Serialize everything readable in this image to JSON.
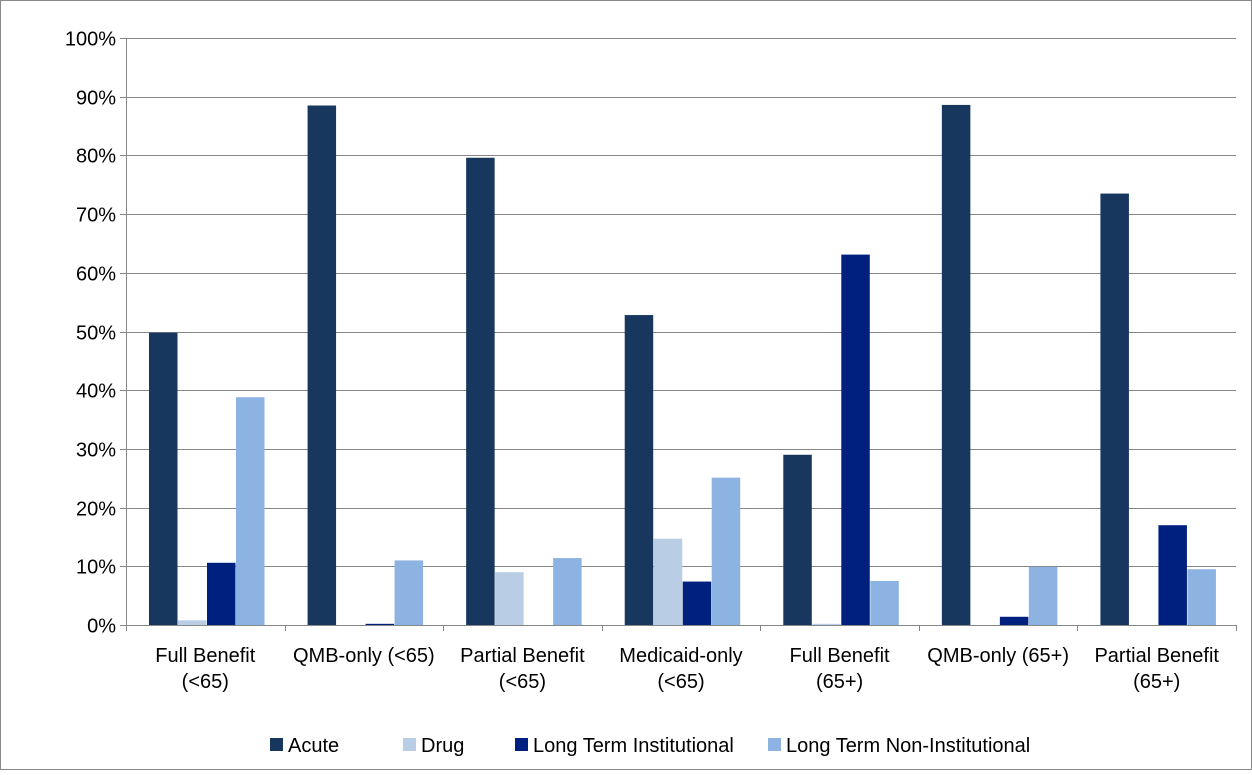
{
  "chart_data": {
    "type": "bar",
    "title": "",
    "xlabel": "",
    "ylabel": "",
    "ylim": [
      0,
      100
    ],
    "yticks": [
      "0%",
      "10%",
      "20%",
      "30%",
      "40%",
      "50%",
      "60%",
      "70%",
      "80%",
      "90%",
      "100%"
    ],
    "grid": true,
    "legend_position": "bottom",
    "categories": [
      [
        "Full Benefit",
        "(<65)"
      ],
      [
        "QMB-only (<65)"
      ],
      [
        "Partial Benefit",
        "(<65)"
      ],
      [
        "Medicaid-only",
        "(<65)"
      ],
      [
        "Full Benefit",
        "(65+)"
      ],
      [
        "QMB-only (65+)"
      ],
      [
        "Partial Benefit",
        "(65+)"
      ]
    ],
    "series": [
      {
        "name": "Acute",
        "color": "#17375E",
        "values": [
          49.8,
          88.5,
          79.6,
          52.8,
          29.0,
          88.6,
          73.5
        ]
      },
      {
        "name": "Drug",
        "color": "#B9CDE5",
        "values": [
          0.8,
          0.0,
          9.0,
          14.7,
          0.2,
          0.0,
          0.0
        ]
      },
      {
        "name": "Long Term Institutional",
        "color": "#002080",
        "values": [
          10.6,
          0.2,
          0.0,
          7.4,
          63.1,
          1.4,
          17.0
        ]
      },
      {
        "name": "Long Term Non-Institutional",
        "color": "#8DB3E2",
        "values": [
          38.8,
          11.0,
          11.4,
          25.1,
          7.5,
          9.9,
          9.5
        ]
      }
    ]
  }
}
